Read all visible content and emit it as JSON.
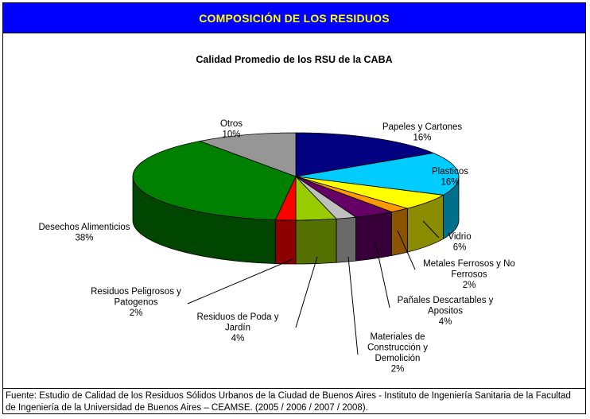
{
  "banner": {
    "title": "COMPOSICIÓN DE LOS RESIDUOS"
  },
  "source": {
    "text": "Fuente: Estudio de Calidad de los Residuos Sólidos Urbanos de la Ciudad de Buenos Aires - Instituto de Ingeniería Sanitaria de la Facultad de Ingeniería de la Universidad de Buenos Aires – CEAMSE. (2005 / 2006 / 2007 / 2008)."
  },
  "chart_data": {
    "type": "pie",
    "title": "Calidad Promedio de los RSU de la CABA",
    "slices": [
      {
        "label": "Papeles y Cartones",
        "label_lines": [
          "Papeles y Cartones"
        ],
        "value": 16,
        "value_label": "16%",
        "color": "#000080"
      },
      {
        "label": "Plasticos",
        "label_lines": [
          "Plasticos"
        ],
        "value": 16,
        "value_label": "16%",
        "color": "#00ccff"
      },
      {
        "label": "Vidrio",
        "label_lines": [
          "Vidrio"
        ],
        "value": 6,
        "value_label": "6%",
        "color": "#ffff00"
      },
      {
        "label": "Metales Ferrosos y No Ferrosos",
        "label_lines": [
          "Metales Ferrosos y No",
          "Ferrosos"
        ],
        "value": 2,
        "value_label": "2%",
        "color": "#ff9900"
      },
      {
        "label": "Pañales Descartables y Apositos",
        "label_lines": [
          "Pañales Descartables y",
          "Apositos"
        ],
        "value": 4,
        "value_label": "4%",
        "color": "#660066"
      },
      {
        "label": "Materiales de Construcción y Demolición",
        "label_lines": [
          "Materiales de",
          "Construcción y",
          "Demolición"
        ],
        "value": 2,
        "value_label": "2%",
        "color": "#c0c0c0"
      },
      {
        "label": "Residuos de Poda y Jardín",
        "label_lines": [
          "Residuos de Poda y",
          "Jardín"
        ],
        "value": 4,
        "value_label": "4%",
        "color": "#99cc00"
      },
      {
        "label": "Residuos Peligrosos y Patogenos",
        "label_lines": [
          "Residuos Peligrosos y",
          "Patogenos"
        ],
        "value": 2,
        "value_label": "2%",
        "color": "#ff0000"
      },
      {
        "label": "Desechos Alimenticios",
        "label_lines": [
          "Desechos Alimenticios"
        ],
        "value": 38,
        "value_label": "38%",
        "color": "#008000"
      },
      {
        "label": "Otros",
        "label_lines": [
          "Otros"
        ],
        "value": 10,
        "value_label": "10%",
        "color": "#969696"
      }
    ]
  }
}
